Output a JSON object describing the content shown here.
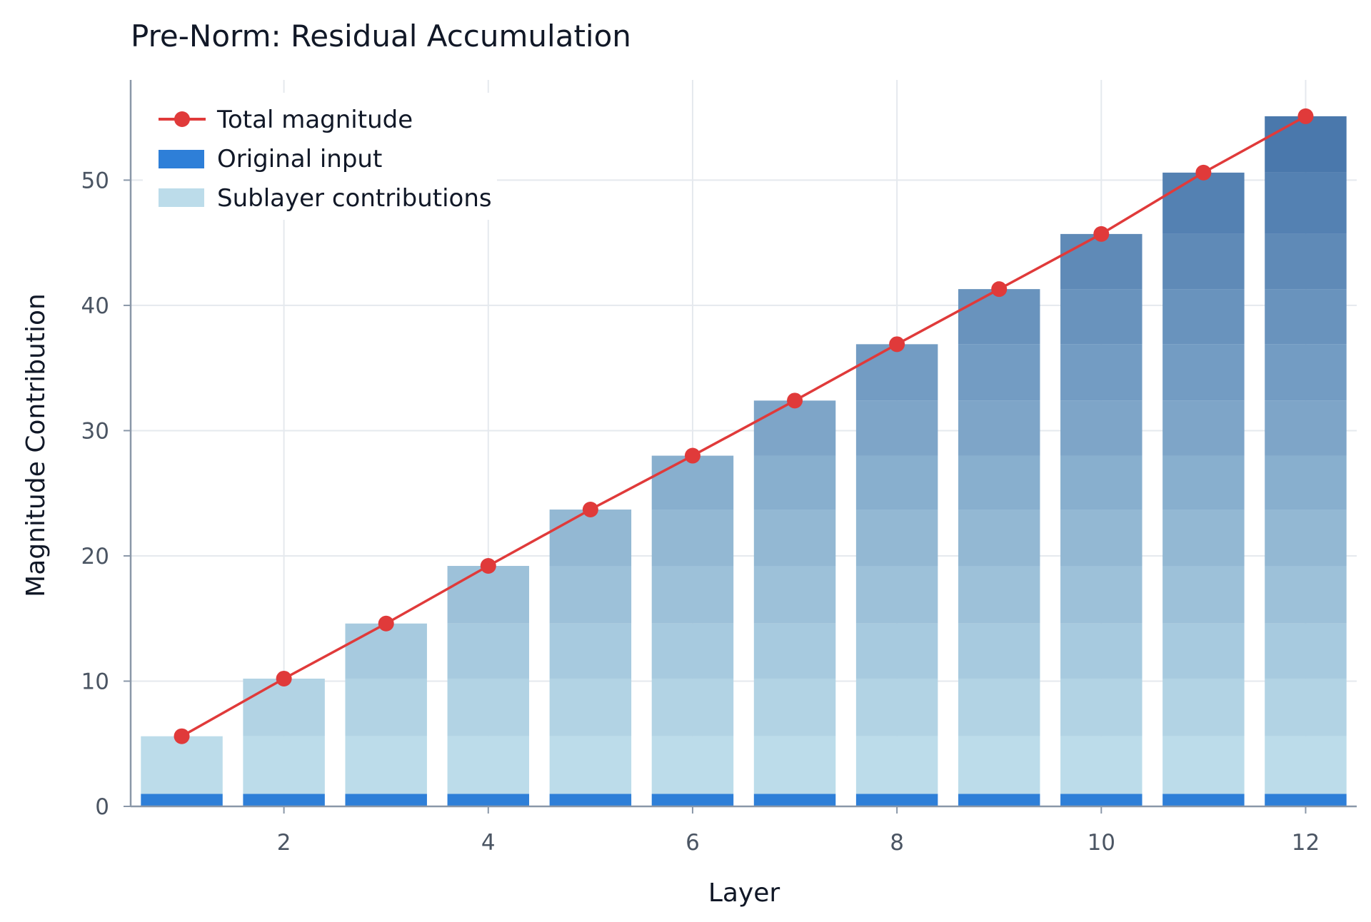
{
  "chart_data": {
    "type": "bar",
    "title": "Pre-Norm: Residual Accumulation",
    "xlabel": "Layer",
    "ylabel": "Magnitude Contribution",
    "xlim": [
      0.5,
      12.5
    ],
    "ylim": [
      0,
      58
    ],
    "x_ticks": [
      2,
      4,
      6,
      8,
      10,
      12
    ],
    "y_ticks": [
      0,
      10,
      20,
      30,
      40,
      50
    ],
    "grid": true,
    "legend_position": "top-left",
    "categories": [
      1,
      2,
      3,
      4,
      5,
      6,
      7,
      8,
      9,
      10,
      11,
      12
    ],
    "series": [
      {
        "name": "Original input",
        "kind": "bar",
        "color": "#2e7fd8",
        "values": [
          1,
          1,
          1,
          1,
          1,
          1,
          1,
          1,
          1,
          1,
          1,
          1
        ]
      },
      {
        "name": "Sublayer contributions",
        "kind": "stacked-bar",
        "color": "#bcdcea",
        "darkest_color": "#4a78ac",
        "values": [
          4.6,
          9.2,
          13.6,
          18.2,
          22.7,
          27.0,
          31.4,
          35.9,
          40.3,
          44.7,
          49.6,
          54.1
        ]
      },
      {
        "name": "Total magnitude",
        "kind": "line",
        "color": "#e03a3a",
        "values": [
          5.6,
          10.2,
          14.6,
          19.2,
          23.7,
          28.0,
          32.4,
          36.9,
          41.3,
          45.7,
          50.6,
          55.1
        ]
      }
    ]
  }
}
